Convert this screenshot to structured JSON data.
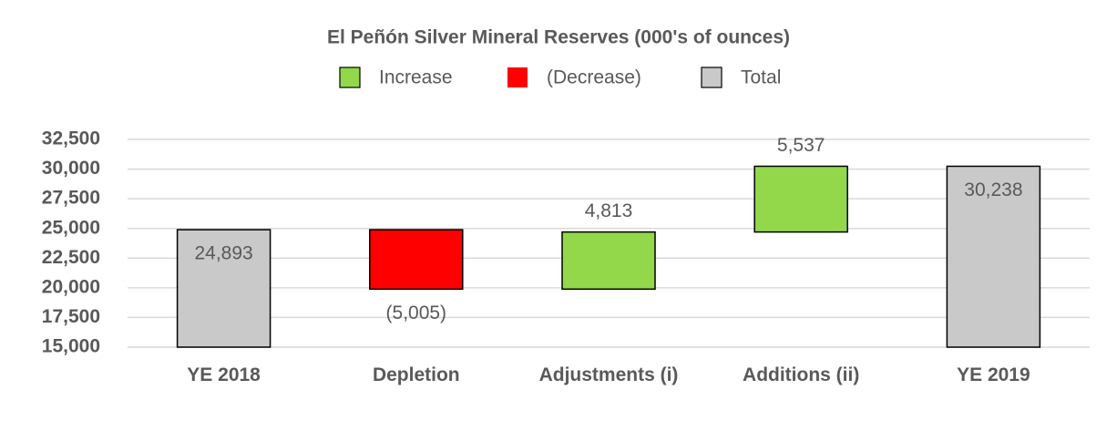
{
  "chart_data": {
    "type": "waterfall",
    "title": "El Peñón Silver Mineral Reserves (000's of ounces)",
    "categories": [
      "YE 2018",
      "Depletion",
      "Adjustments (i)",
      "Additions (ii)",
      "YE 2019"
    ],
    "values": [
      24893,
      -5005,
      4813,
      5537,
      30238
    ],
    "value_labels": [
      "24,893",
      "(5,005)",
      "4,813",
      "5,537",
      "30,238"
    ],
    "legend": [
      {
        "name": "Increase",
        "color": "#92d84a"
      },
      {
        "name": "(Decrease)",
        "color": "#ff0000"
      },
      {
        "name": "Total",
        "color": "#c9c9c9"
      }
    ],
    "ylim": [
      15000,
      32500
    ],
    "yticks": [
      {
        "value": 15000,
        "label": "15,000"
      },
      {
        "value": 17500,
        "label": "17,500"
      },
      {
        "value": 20000,
        "label": "20,000"
      },
      {
        "value": 22500,
        "label": "22,500"
      },
      {
        "value": 25000,
        "label": "25,000"
      },
      {
        "value": 27500,
        "label": "27,500"
      },
      {
        "value": 30000,
        "label": "30,000"
      },
      {
        "value": 32500,
        "label": "32,500"
      }
    ],
    "grid": true
  }
}
